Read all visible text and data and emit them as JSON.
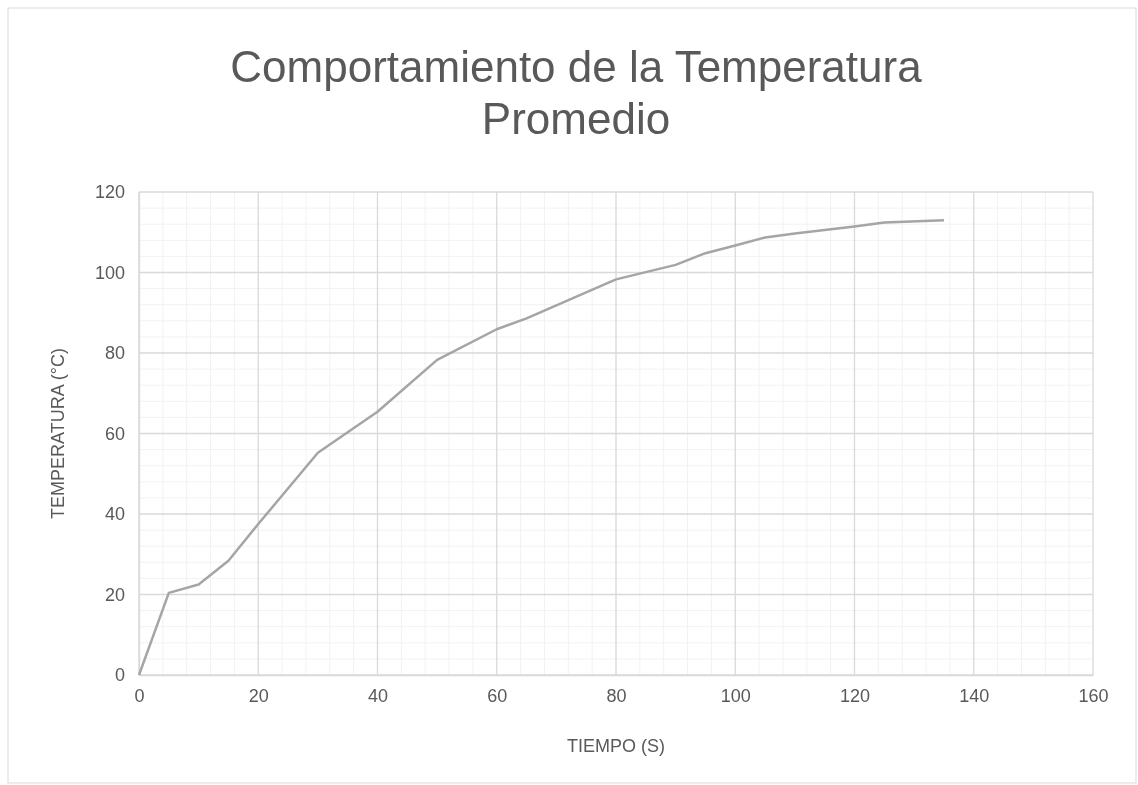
{
  "chart_data": {
    "type": "line",
    "title": "Comportamiento de la Temperatura Promedio",
    "xlabel": "TIEMPO (S)",
    "ylabel": "TEMPERATURA (°C)",
    "x": [
      0,
      5,
      10,
      15,
      20,
      30,
      40,
      50,
      60,
      65,
      80,
      90,
      95,
      100,
      105,
      110,
      120,
      125,
      135
    ],
    "series": [
      {
        "color": "#a5a5a5",
        "values": [
          0,
          20.4,
          22.5,
          28.4,
          37.5,
          55.2,
          65.4,
          78.3,
          85.9,
          88.6,
          98.3,
          101.9,
          104.8,
          106.7,
          108.7,
          109.7,
          111.4,
          112.4,
          113
        ]
      }
    ],
    "xlim": [
      0,
      160
    ],
    "xticks": [
      0,
      20,
      40,
      60,
      80,
      100,
      120,
      140,
      160
    ],
    "ylim": [
      0,
      120
    ],
    "yticks": [
      0,
      20,
      40,
      60,
      80,
      100,
      120
    ],
    "grid": true,
    "marker": "none",
    "line_style": "solid"
  }
}
